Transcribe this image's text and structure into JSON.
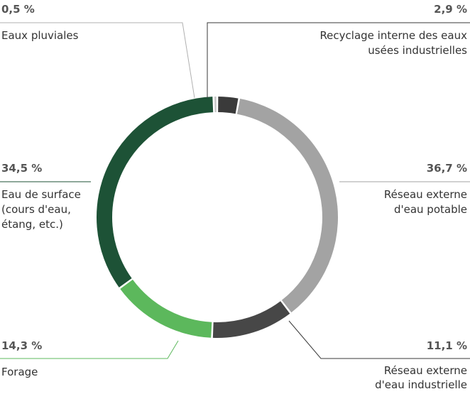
{
  "chart_data": {
    "type": "pie",
    "variant": "donut",
    "categories": [
      "Recyclage interne des eaux usées industrielles",
      "Réseau externe d'eau potable",
      "Réseau externe d'eau industrielle",
      "Forage",
      "Eau de surface (cours d'eau, étang, etc.)",
      "Eaux pluviales"
    ],
    "values": [
      2.9,
      36.7,
      11.1,
      14.3,
      34.5,
      0.5
    ],
    "colors": [
      "#3a3a3a",
      "#a3a3a3",
      "#474747",
      "#5cb85c",
      "#1d5236",
      "#c7c7c7"
    ],
    "labels": {
      "recyclage": {
        "pct": "2,9 %",
        "line1": "Recyclage interne des eaux",
        "line2": "usées industrielles"
      },
      "potable": {
        "pct": "36,7 %",
        "line1": "Réseau externe",
        "line2": "d'eau potable"
      },
      "industrielle": {
        "pct": "11,1 %",
        "line1": "Réseau externe",
        "line2": "d'eau industrielle"
      },
      "forage": {
        "pct": "14,3 %",
        "line1": "Forage"
      },
      "surface": {
        "pct": "34,5 %",
        "line1": "Eau de surface",
        "line2": "(cours d'eau,",
        "line3": "étang, etc.)"
      },
      "pluviales": {
        "pct": "0,5 %",
        "line1": "Eaux pluviales"
      }
    }
  }
}
